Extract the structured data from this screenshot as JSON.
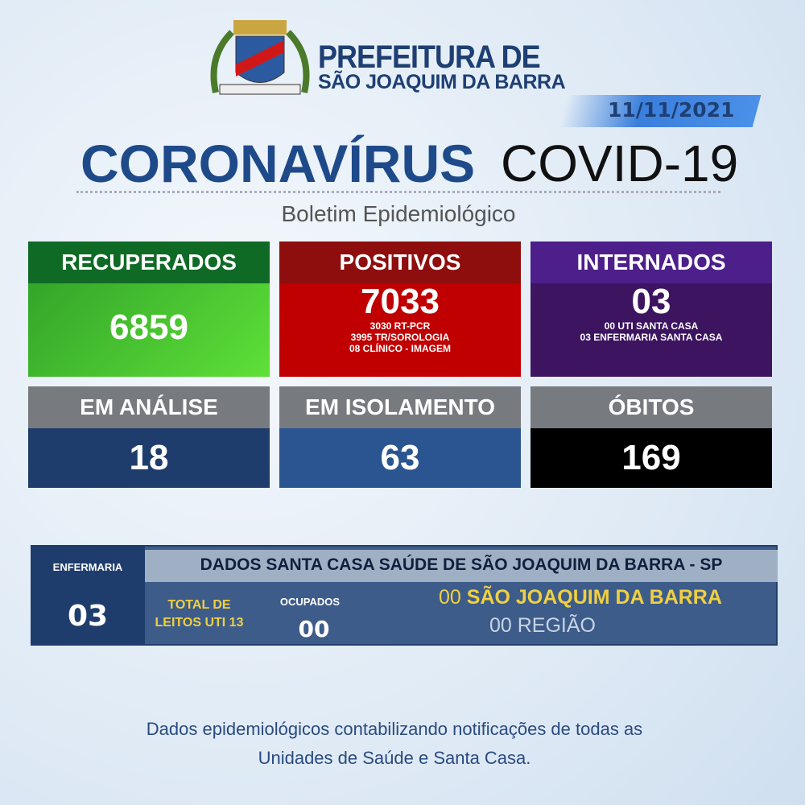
{
  "header": {
    "title_line1": "PREFEITURA DE",
    "title_line2": "SÃO JOAQUIM DA BARRA",
    "date": "11/11/2021",
    "main_title": "CORONAVÍRUS",
    "main_title_suffix": "COVID-19",
    "subtitle": "Boletim Epidemiológico"
  },
  "cards": {
    "recuperados": {
      "label": "RECUPERADOS",
      "value": "6859"
    },
    "positivos": {
      "label": "POSITIVOS",
      "value": "7033",
      "details": [
        "3030 RT-PCR",
        "3995 TR/SOROLOGIA",
        "08 CLÍNICO - IMAGEM"
      ]
    },
    "internados": {
      "label": "INTERNADOS",
      "value": "03",
      "details": [
        "00 UTI SANTA CASA",
        "03 ENFERMARIA SANTA CASA"
      ]
    },
    "analise": {
      "label": "EM ANÁLISE",
      "value": "18"
    },
    "isolamento": {
      "label": "EM ISOLAMENTO",
      "value": "63"
    },
    "obitos": {
      "label": "ÓBITOS",
      "value": "169"
    }
  },
  "santa_casa": {
    "enfermaria_label": "ENFERMARIA",
    "enfermaria_value": "03",
    "title": "DADOS SANTA CASA SAÚDE DE SÃO JOAQUIM DA BARRA - SP",
    "total_label_1": "TOTAL DE",
    "total_label_2": "LEITOS UTI 13",
    "ocupados_label": "OCUPADOS",
    "ocupados_value": "00",
    "sjb_count": "00",
    "sjb_label": "SÃO JOAQUIM DA BARRA",
    "regiao": "00 REGIÃO"
  },
  "footer": {
    "line1": "Dados epidemiológicos contabilizando notificações de todas as",
    "line2": "Unidades de Saúde e Santa Casa."
  },
  "colors": {
    "green": "#3fbf30",
    "red": "#c00000",
    "purple": "#3c1460",
    "navy": "#1f3d6c",
    "blue": "#2b5590",
    "black": "#000000",
    "gray": "#777b80"
  }
}
